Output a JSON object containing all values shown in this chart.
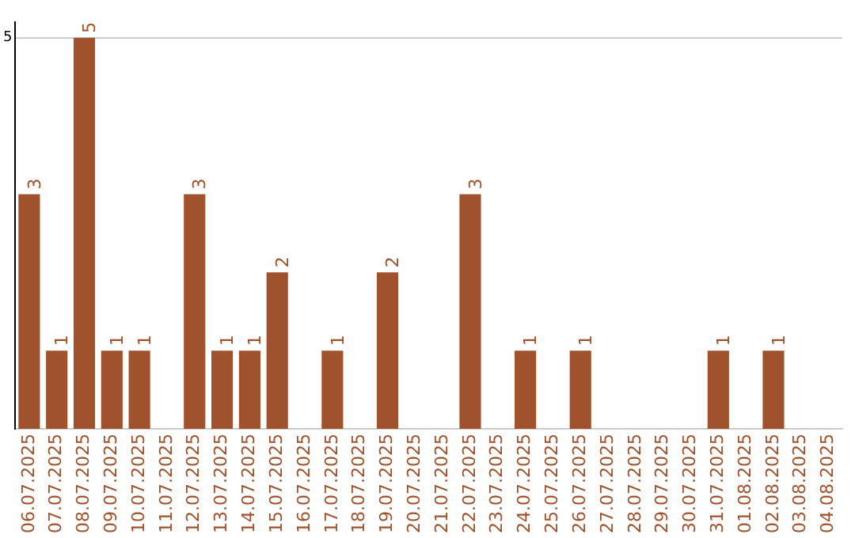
{
  "chart_data": {
    "type": "bar",
    "categories": [
      "06.07.2025",
      "07.07.2025",
      "08.07.2025",
      "09.07.2025",
      "10.07.2025",
      "11.07.2025",
      "12.07.2025",
      "13.07.2025",
      "14.07.2025",
      "15.07.2025",
      "16.07.2025",
      "17.07.2025",
      "18.07.2025",
      "19.07.2025",
      "20.07.2025",
      "21.07.2025",
      "22.07.2025",
      "23.07.2025",
      "24.07.2025",
      "25.07.2025",
      "26.07.2025",
      "27.07.2025",
      "28.07.2025",
      "29.07.2025",
      "30.07.2025",
      "31.07.2025",
      "01.08.2025",
      "02.08.2025",
      "03.08.2025",
      "04.08.2025"
    ],
    "values": [
      3,
      1,
      5,
      1,
      1,
      0,
      3,
      1,
      1,
      2,
      0,
      1,
      0,
      2,
      0,
      0,
      3,
      0,
      1,
      0,
      1,
      0,
      0,
      0,
      0,
      1,
      0,
      1,
      0,
      0
    ],
    "value_labels": [
      "3",
      "1",
      "5",
      "1",
      "1",
      null,
      "3",
      "1",
      "1",
      "2",
      null,
      "1",
      null,
      "2",
      null,
      null,
      "3",
      null,
      "1",
      null,
      "1",
      null,
      null,
      null,
      null,
      "1",
      null,
      "1",
      null,
      null
    ],
    "color": "#a0522d",
    "ylim": [
      0,
      5.2
    ],
    "yticks": [
      5
    ],
    "grid": "y",
    "legend": false
  }
}
